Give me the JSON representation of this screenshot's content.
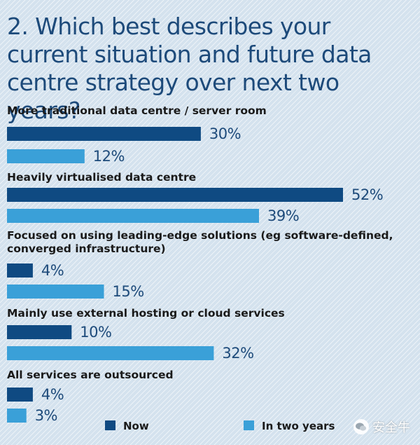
{
  "chart_data": {
    "type": "bar",
    "orientation": "horizontal",
    "title": "2. Which best describes your current situation and future data centre strategy over next two years?",
    "unit": "%",
    "categories": [
      "More traditional data centre / server room",
      "Heavily virtualised data centre",
      "Focused on using leading-edge solutions (eg software-defined, converged infrastructure)",
      "Mainly use external hosting or cloud services",
      "All services are outsourced"
    ],
    "series": [
      {
        "name": "Now",
        "color": "#0f4a82",
        "values": [
          30,
          52,
          4,
          10,
          4
        ]
      },
      {
        "name": "In two years",
        "color": "#3aa0d8",
        "values": [
          12,
          39,
          15,
          32,
          3
        ]
      }
    ],
    "xlim": [
      0,
      56
    ],
    "grid": false,
    "legend_position": "bottom"
  },
  "watermark": {
    "text": "安全牛",
    "icon": "wechat-icon"
  }
}
